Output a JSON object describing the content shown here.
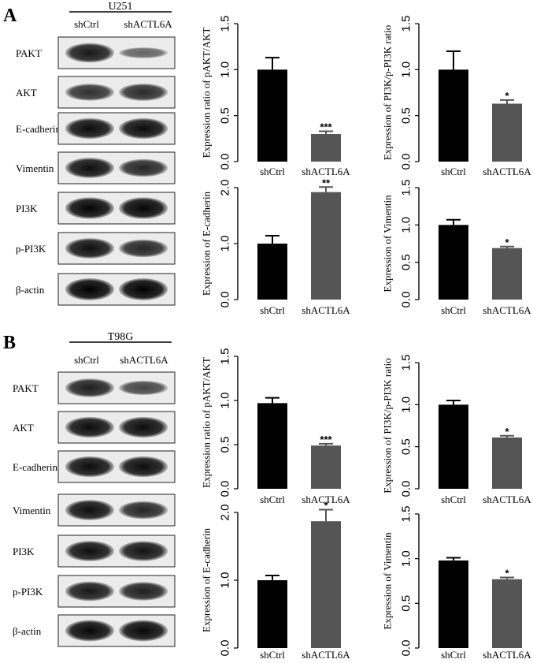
{
  "panels": [
    {
      "letter": "A",
      "cell_line": "U251",
      "lanes": [
        "shCtrl",
        "shACTL6A"
      ],
      "blots": [
        {
          "label": "PAKT",
          "bands": [
            0.85,
            0.35
          ]
        },
        {
          "label": "AKT",
          "bands": [
            0.7,
            0.72
          ]
        },
        {
          "label": "E-cadherin",
          "bands": [
            0.92,
            0.92
          ]
        },
        {
          "label": "Vimentin",
          "bands": [
            0.9,
            0.75
          ]
        },
        {
          "label": "PI3K",
          "bands": [
            0.97,
            0.97
          ]
        },
        {
          "label": "p-PI3K",
          "bands": [
            0.9,
            0.75
          ]
        },
        {
          "label": "β-actin",
          "bands": [
            1.0,
            1.0
          ]
        }
      ]
    },
    {
      "letter": "B",
      "cell_line": "T98G",
      "lanes": [
        "shCtrl",
        "shACTL6A"
      ],
      "blots": [
        {
          "label": "PAKT",
          "bands": [
            0.8,
            0.55
          ]
        },
        {
          "label": "AKT",
          "bands": [
            0.92,
            0.92
          ]
        },
        {
          "label": "E-cadherin",
          "bands": [
            0.92,
            0.92
          ]
        },
        {
          "label": "Vimentin",
          "bands": [
            0.9,
            0.75
          ]
        },
        {
          "label": "PI3K",
          "bands": [
            0.9,
            0.88
          ]
        },
        {
          "label": "p-PI3K",
          "bands": [
            0.85,
            0.8
          ]
        },
        {
          "label": "β-actin",
          "bands": [
            0.95,
            0.95
          ]
        }
      ]
    }
  ],
  "chart_data": [
    {
      "type": "bar",
      "panel": "A",
      "categories": [
        "shCtrl",
        "shACTL6A"
      ],
      "values": [
        1.0,
        0.3
      ],
      "errors": [
        0.13,
        0.03
      ],
      "significance": [
        "",
        "***"
      ],
      "ylabel": "Expression ratio of pAKT/AKT",
      "ylim": [
        0,
        1.5
      ],
      "yticks": [
        "0.0",
        "0.5",
        "1.0",
        "1.5"
      ],
      "colors": [
        "#000000",
        "#555555"
      ]
    },
    {
      "type": "bar",
      "panel": "A",
      "categories": [
        "shCtrl",
        "shACTL6A"
      ],
      "values": [
        1.0,
        0.63
      ],
      "errors": [
        0.2,
        0.04
      ],
      "significance": [
        "",
        "*"
      ],
      "ylabel": "Expression of PI3K/p-PI3K ratio",
      "ylim": [
        0,
        1.5
      ],
      "yticks": [
        "0.0",
        "0.5",
        "1.0",
        "1.5"
      ],
      "colors": [
        "#000000",
        "#555555"
      ]
    },
    {
      "type": "bar",
      "panel": "A",
      "categories": [
        "shCtrl",
        "shACTL6A"
      ],
      "values": [
        1.0,
        1.92
      ],
      "errors": [
        0.14,
        0.09
      ],
      "significance": [
        "",
        "**"
      ],
      "ylabel": "Expression of E-cadherin",
      "ylim": [
        0,
        2.0
      ],
      "yticks": [
        "0.0",
        "1.0",
        "2.0"
      ],
      "colors": [
        "#000000",
        "#555555"
      ]
    },
    {
      "type": "bar",
      "panel": "A",
      "categories": [
        "shCtrl",
        "shACTL6A"
      ],
      "values": [
        1.0,
        0.69
      ],
      "errors": [
        0.07,
        0.02
      ],
      "significance": [
        "",
        "*"
      ],
      "ylabel": "Expression of Vimentin",
      "ylim": [
        0,
        1.5
      ],
      "yticks": [
        "0.0",
        "0.5",
        "1.0",
        "1.5"
      ],
      "colors": [
        "#000000",
        "#555555"
      ]
    },
    {
      "type": "bar",
      "panel": "B",
      "categories": [
        "shCtrl",
        "shACTL6A"
      ],
      "values": [
        0.97,
        0.49
      ],
      "errors": [
        0.06,
        0.02
      ],
      "significance": [
        "",
        "***"
      ],
      "ylabel": "Expression ratio of pAKT/AKT",
      "ylim": [
        0,
        1.5
      ],
      "yticks": [
        "0.0",
        "0.5",
        "1.0",
        "1.5"
      ],
      "colors": [
        "#000000",
        "#555555"
      ]
    },
    {
      "type": "bar",
      "panel": "B",
      "categories": [
        "shCtrl",
        "shACTL6A"
      ],
      "values": [
        1.0,
        0.61
      ],
      "errors": [
        0.05,
        0.02
      ],
      "significance": [
        "",
        "*"
      ],
      "ylabel": "Expression of PI3K/p-PI3K ratio",
      "ylim": [
        0,
        1.5
      ],
      "yticks": [
        "0.0",
        "0.5",
        "1.0",
        "1.5"
      ],
      "colors": [
        "#000000",
        "#555555"
      ]
    },
    {
      "type": "bar",
      "panel": "B",
      "categories": [
        "shCtrl",
        "shACTL6A"
      ],
      "values": [
        1.0,
        1.87
      ],
      "errors": [
        0.07,
        0.17
      ],
      "significance": [
        "",
        "*"
      ],
      "ylabel": "Expression of E-cadherin",
      "ylim": [
        0,
        2.0
      ],
      "yticks": [
        "0.0",
        "1.0",
        "2.0"
      ],
      "colors": [
        "#000000",
        "#555555"
      ]
    },
    {
      "type": "bar",
      "panel": "B",
      "categories": [
        "shCtrl",
        "shACTL6A"
      ],
      "values": [
        0.98,
        0.77
      ],
      "errors": [
        0.03,
        0.02
      ],
      "significance": [
        "",
        "*"
      ],
      "ylabel": "Expression of Vimentin",
      "ylim": [
        0,
        1.5
      ],
      "yticks": [
        "0.0",
        "0.5",
        "1.0",
        "1.5"
      ],
      "colors": [
        "#000000",
        "#555555"
      ]
    }
  ]
}
